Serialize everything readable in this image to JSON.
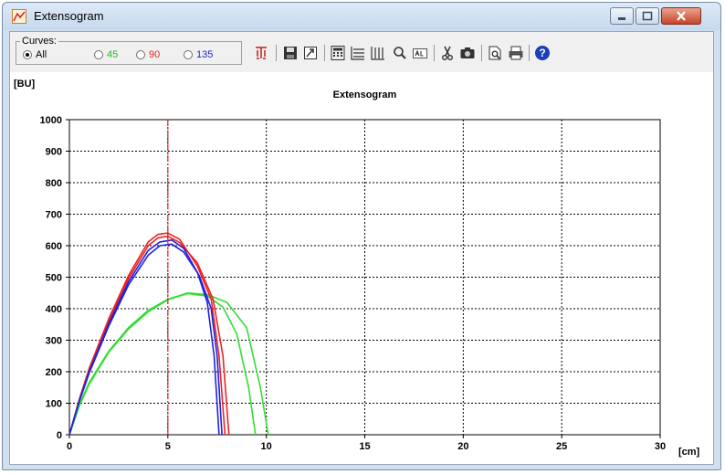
{
  "window": {
    "title": "Extensogram"
  },
  "toolbar": {
    "group_label": "Curves:",
    "radios": [
      {
        "label": "All",
        "checked": true,
        "color": "#000000"
      },
      {
        "label": "45",
        "checked": false,
        "color": "#22bb22"
      },
      {
        "label": "90",
        "checked": false,
        "color": "#ee2222"
      },
      {
        "label": "135",
        "checked": false,
        "color": "#2222dd"
      }
    ],
    "buttons": [
      "filter-icon",
      "save-icon",
      "export-icon",
      "calculator-icon",
      "horizontal-grid-icon",
      "vertical-grid-icon",
      "zoom-icon",
      "text-icon",
      "cut-icon",
      "camera-icon",
      "print-preview-icon",
      "print-icon",
      "help-icon"
    ]
  },
  "chart_data": {
    "type": "line",
    "title": "Extensogram",
    "ylabel": "[BU]",
    "xlabel": "[cm]",
    "xlim": [
      0,
      30
    ],
    "ylim": [
      0,
      1000
    ],
    "xticks": [
      "0",
      "5",
      "10",
      "15",
      "20",
      "25",
      "30"
    ],
    "yticks": [
      "0",
      "100",
      "200",
      "300",
      "400",
      "500",
      "600",
      "700",
      "800",
      "900",
      "1000"
    ],
    "grid": true,
    "marker_x": 5,
    "marker_color": "#ee2222",
    "series": [
      {
        "group": "45",
        "color": "#33dd33",
        "points": [
          [
            0,
            0
          ],
          [
            0.5,
            95
          ],
          [
            1,
            165
          ],
          [
            2,
            265
          ],
          [
            3,
            340
          ],
          [
            4,
            395
          ],
          [
            5,
            430
          ],
          [
            6,
            450
          ],
          [
            7,
            445
          ],
          [
            8,
            420
          ],
          [
            9,
            340
          ],
          [
            9.7,
            150
          ],
          [
            10.1,
            0
          ]
        ]
      },
      {
        "group": "45",
        "color": "#33dd33",
        "points": [
          [
            0,
            0
          ],
          [
            0.5,
            90
          ],
          [
            1,
            160
          ],
          [
            2,
            262
          ],
          [
            3,
            335
          ],
          [
            4,
            390
          ],
          [
            5,
            428
          ],
          [
            6,
            448
          ],
          [
            7,
            440
          ],
          [
            7.8,
            405
          ],
          [
            8.5,
            320
          ],
          [
            9.1,
            150
          ],
          [
            9.45,
            0
          ]
        ]
      },
      {
        "group": "90",
        "color": "#ee2222",
        "points": [
          [
            0,
            0
          ],
          [
            0.5,
            110
          ],
          [
            1,
            205
          ],
          [
            2,
            360
          ],
          [
            3,
            495
          ],
          [
            4,
            600
          ],
          [
            4.5,
            625
          ],
          [
            5,
            630
          ],
          [
            5.6,
            610
          ],
          [
            6.5,
            545
          ],
          [
            7.3,
            430
          ],
          [
            7.8,
            250
          ],
          [
            8.1,
            0
          ]
        ]
      },
      {
        "group": "90",
        "color": "#ee2222",
        "points": [
          [
            0,
            0
          ],
          [
            0.5,
            112
          ],
          [
            1,
            210
          ],
          [
            2,
            368
          ],
          [
            3,
            505
          ],
          [
            4,
            612
          ],
          [
            4.5,
            636
          ],
          [
            5,
            640
          ],
          [
            5.6,
            620
          ],
          [
            6.5,
            535
          ],
          [
            7.2,
            430
          ],
          [
            7.6,
            250
          ],
          [
            7.9,
            0
          ]
        ]
      },
      {
        "group": "135",
        "color": "#2222dd",
        "points": [
          [
            0,
            0
          ],
          [
            0.5,
            105
          ],
          [
            1,
            195
          ],
          [
            2,
            345
          ],
          [
            3,
            475
          ],
          [
            4,
            570
          ],
          [
            4.6,
            600
          ],
          [
            5.2,
            605
          ],
          [
            5.8,
            580
          ],
          [
            6.6,
            505
          ],
          [
            7.2,
            400
          ],
          [
            7.5,
            250
          ],
          [
            7.75,
            0
          ]
        ]
      },
      {
        "group": "135",
        "color": "#2222dd",
        "points": [
          [
            0,
            0
          ],
          [
            0.5,
            108
          ],
          [
            1,
            200
          ],
          [
            2,
            352
          ],
          [
            3,
            485
          ],
          [
            4,
            585
          ],
          [
            4.6,
            612
          ],
          [
            5.2,
            618
          ],
          [
            5.8,
            592
          ],
          [
            6.5,
            515
          ],
          [
            7,
            420
          ],
          [
            7.35,
            250
          ],
          [
            7.6,
            0
          ]
        ]
      }
    ]
  }
}
